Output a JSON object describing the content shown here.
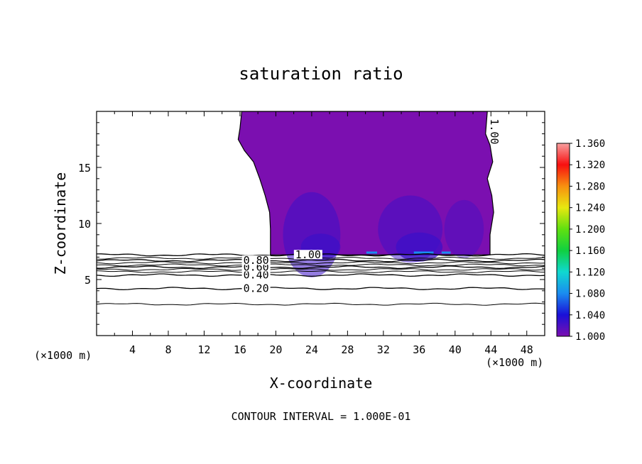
{
  "chart_data": {
    "type": "heatmap",
    "title": "saturation ratio",
    "xlabel": "X-coordinate",
    "ylabel": "Z-coordinate",
    "x_unit": "(×1000 m)",
    "footer": "CONTOUR INTERVAL = 1.000E-01",
    "xlim": [
      0,
      50
    ],
    "ylim": [
      0,
      20
    ],
    "x_ticks": [
      4,
      8,
      12,
      16,
      20,
      24,
      28,
      32,
      36,
      40,
      44,
      48
    ],
    "y_ticks": [
      5,
      10,
      15
    ],
    "colorbar": {
      "min": 1.0,
      "max": 1.36,
      "ticks": [
        "1.000",
        "1.040",
        "1.080",
        "1.120",
        "1.160",
        "1.200",
        "1.240",
        "1.280",
        "1.320",
        "1.360"
      ],
      "stops": [
        {
          "value": 1.0,
          "color": "#7b0fb0"
        },
        {
          "value": 1.04,
          "color": "#1a10d8"
        },
        {
          "value": 1.08,
          "color": "#1a8cf0"
        },
        {
          "value": 1.12,
          "color": "#10d8d0"
        },
        {
          "value": 1.16,
          "color": "#10d040"
        },
        {
          "value": 1.2,
          "color": "#60e010"
        },
        {
          "value": 1.24,
          "color": "#e8e810"
        },
        {
          "value": 1.28,
          "color": "#f89010"
        },
        {
          "value": 1.32,
          "color": "#f81010"
        },
        {
          "value": 1.36,
          "color": "#f8a0a0"
        }
      ]
    },
    "supersaturated_region": {
      "value_min": 1.0,
      "x_left_edge": [
        [
          16.2,
          20
        ],
        [
          16,
          18.5
        ],
        [
          15.8,
          17.5
        ],
        [
          16.5,
          16.5
        ],
        [
          17.5,
          15.5
        ],
        [
          18.2,
          14
        ],
        [
          18.8,
          12.5
        ],
        [
          19.3,
          11
        ],
        [
          19.4,
          9.5
        ],
        [
          19.4,
          7.2
        ]
      ],
      "x_right_edge": [
        [
          43.6,
          20
        ],
        [
          43.4,
          18
        ],
        [
          43.9,
          17
        ],
        [
          44.2,
          15.5
        ],
        [
          43.6,
          14
        ],
        [
          44.1,
          12.5
        ],
        [
          44.3,
          11
        ],
        [
          43.9,
          9
        ],
        [
          43.9,
          7.2
        ]
      ],
      "base_z": 7.2,
      "top_z": 20
    },
    "contours": [
      {
        "value": 0.2,
        "label": "0.20",
        "z": 4.2
      },
      {
        "value": 0.4,
        "label": "0.40",
        "z": 5.4
      },
      {
        "value": 0.6,
        "label": "0.60",
        "z": 6.1
      },
      {
        "value": 0.8,
        "label": "0.80",
        "z": 6.7
      },
      {
        "value": 1.0,
        "label": "1.00",
        "z": 7.2
      }
    ],
    "extra_contour_z": [
      2.8,
      5.7,
      5.9,
      6.3,
      6.5,
      6.9
    ]
  }
}
